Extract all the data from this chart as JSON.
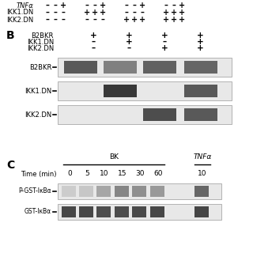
{
  "bg_color": "#ffffff",
  "section_A_row1_signs": [
    [
      "–",
      "–",
      "+"
    ],
    [
      "–",
      "–",
      "+"
    ],
    [
      "–",
      "–",
      "+"
    ],
    [
      "–",
      "–",
      "+"
    ]
  ],
  "section_A_row2_signs": [
    [
      "–",
      "–",
      "–"
    ],
    [
      "+",
      "+",
      "+"
    ],
    [
      "–",
      "–",
      "–"
    ],
    [
      "+",
      "+",
      "+"
    ]
  ],
  "section_A_row3_signs": [
    [
      "–",
      "–",
      "–"
    ],
    [
      "–",
      "–",
      "–"
    ],
    [
      "+",
      "+",
      "+"
    ],
    [
      "+",
      "+",
      "+"
    ]
  ],
  "section_A_label1": "TNFα",
  "section_A_label2": "IKK1.DN",
  "section_A_label3": "IKK2.DN",
  "section_B_label": "B",
  "section_B_cond_labels": [
    "B2BKR",
    "IKK1.DN",
    "IKK2.DN"
  ],
  "section_B_signs": [
    [
      "+",
      "+",
      "+",
      "+"
    ],
    [
      "–",
      "+",
      "–",
      "+"
    ],
    [
      "–",
      "–",
      "+",
      "+"
    ]
  ],
  "section_B_blot_labels": [
    "B2BKR",
    "IKK1.DN",
    "IKK2.DN"
  ],
  "section_C_label": "C",
  "section_C_bk_label": "BK",
  "section_C_tnfa_label": "TNFα",
  "section_C_time_label": "Time (min)",
  "section_C_times": [
    "0",
    "5",
    "10",
    "15",
    "30",
    "60",
    "10"
  ],
  "section_C_blot_labels": [
    "P-GST-IκBα",
    "GST-IκBα"
  ]
}
